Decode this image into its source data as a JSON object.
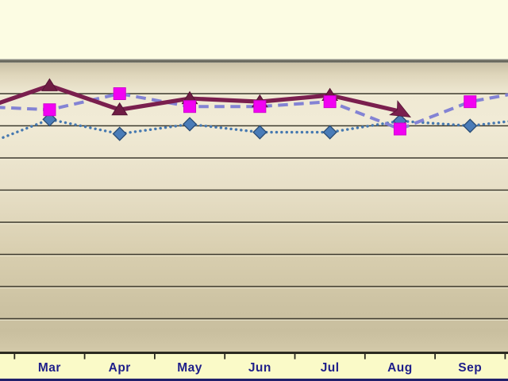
{
  "chart_data": {
    "type": "line",
    "title": "",
    "legend": "none",
    "categories": [
      "Mar",
      "Apr",
      "May",
      "Jun",
      "Jul",
      "Aug",
      "Sep"
    ],
    "x_axis": {
      "tick_marks_between_categories": true,
      "label_color": "#1E1E8A",
      "band_color": "#FAFAC8"
    },
    "y_axis": {
      "min": 0,
      "max": 90,
      "gridline_interval": 10,
      "labels_visible": false,
      "gridlines_visible": true
    },
    "series": [
      {
        "name": "plum-solid-triangles",
        "line_style": "solid",
        "line_color": "#7A1F4E",
        "marker": "triangle",
        "marker_color": "#6F1C44",
        "marker_edge_color": "#531434",
        "values": [
          82.5,
          75,
          78.5,
          77.5,
          79.5,
          74.5,
          null
        ],
        "enters_from_left_at": 75,
        "exits_right_at": null,
        "arrow_end_at_last_point": true
      },
      {
        "name": "periwinkle-dashed-squares",
        "line_style": "dashed",
        "line_color": "#8383D4",
        "marker": "square",
        "marker_color": "#F201F2",
        "marker_edge_color": "#CF02CF",
        "values": [
          75,
          80,
          76,
          76,
          77.5,
          69,
          77.5
        ],
        "enters_from_left_at": 76,
        "exits_right_at": 81.5,
        "arrow_end_at_last_point": false
      },
      {
        "name": "steelblue-dotted-diamonds",
        "line_style": "dotted",
        "line_color": "#4578B0",
        "marker": "diamond",
        "marker_color": "#4A7CB8",
        "marker_edge_color": "#2A4C74",
        "values": [
          72,
          67.5,
          70.5,
          68,
          68,
          71.5,
          70
        ],
        "enters_from_left_at": 63.5,
        "exits_right_at": 72.5,
        "arrow_end_at_last_point": false
      }
    ],
    "style": {
      "gridline_color": "#3D3A2E",
      "gridline_highlight_color": "#F6F1DC",
      "axis_line_color": "#2B2A20",
      "plot_top_shadow": true,
      "background_above_plot": "#FCFCE3",
      "bottom_edge_strip_color": "#20206B"
    }
  }
}
